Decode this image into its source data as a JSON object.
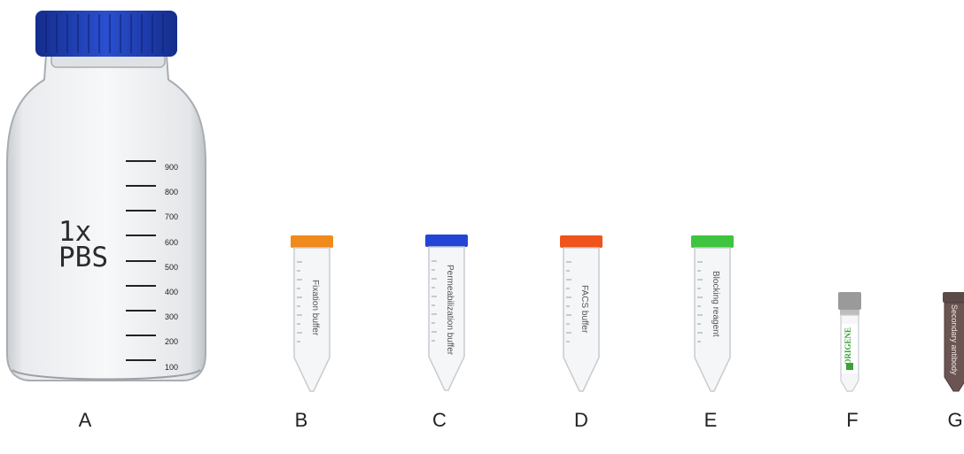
{
  "bottle": {
    "line1": "1x",
    "line2": "PBS",
    "scale": [
      "900",
      "800",
      "700",
      "600",
      "500",
      "400",
      "300",
      "200",
      "100"
    ],
    "cap_color": "#1f3fb5"
  },
  "tubes": [
    {
      "letter": "B",
      "text": "Fixation buffer",
      "cap_color": "#f08a1c"
    },
    {
      "letter": "C",
      "text": "Permeabilization buffer",
      "cap_color": "#2345d6"
    },
    {
      "letter": "D",
      "text": "FACS buffer",
      "cap_color": "#f0541a"
    },
    {
      "letter": "E",
      "text": "Blocking reagent",
      "cap_color": "#3fc43f"
    }
  ],
  "vial_f": {
    "brand": "ORIGENE",
    "cap_color": "#9a9a9a",
    "brand_color": "#3aa13a"
  },
  "vial_g": {
    "text": "Secondary antibody",
    "cap_color": "#5a4a48"
  },
  "labels": {
    "a": "A",
    "b": "B",
    "c": "C",
    "d": "D",
    "e": "E",
    "f": "F",
    "g": "G"
  }
}
